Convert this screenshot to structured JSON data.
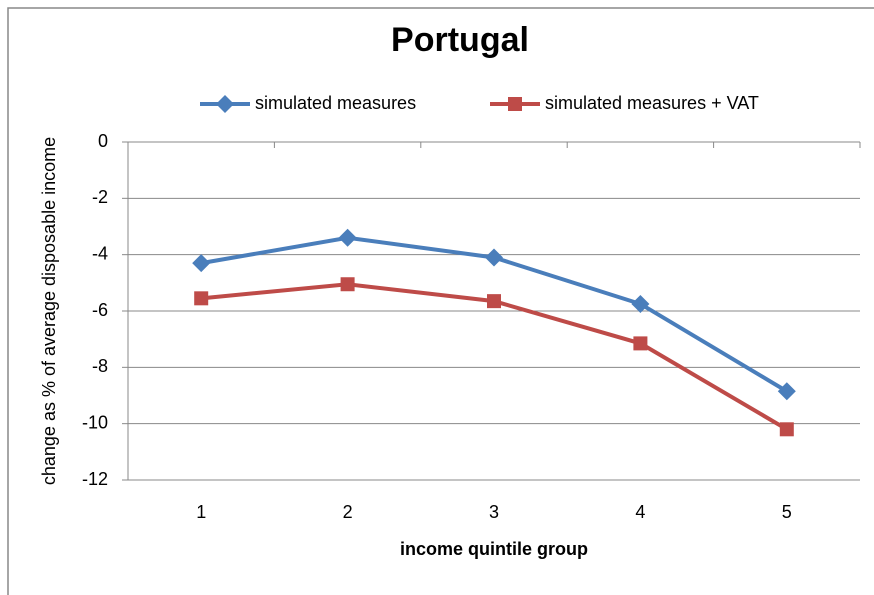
{
  "chart_data": {
    "type": "line",
    "title": "Portugal",
    "x_label": "income quintile group",
    "y_label": "change as % of average disposable income",
    "categories": [
      "1",
      "2",
      "3",
      "4",
      "5"
    ],
    "series": [
      {
        "name": "simulated measures",
        "color": "#4a7ebb",
        "marker": "diamond",
        "values": [
          -4.3,
          -3.4,
          -4.1,
          -5.75,
          -8.85
        ]
      },
      {
        "name": "simulated measures + VAT",
        "color": "#be4b48",
        "marker": "square",
        "values": [
          -5.55,
          -5.05,
          -5.65,
          -7.15,
          -10.2
        ]
      }
    ],
    "ylim": [
      -12,
      0
    ],
    "yticks": [
      0,
      -2,
      -4,
      -6,
      -8,
      -10,
      -12
    ],
    "grid": true
  }
}
